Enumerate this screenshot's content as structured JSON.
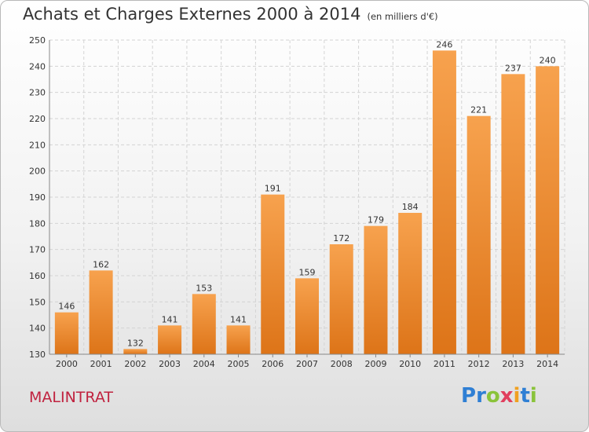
{
  "header": {
    "title": "Achats et Charges Externes 2000 à 2014",
    "subtitle": "(en milliers d'€)"
  },
  "location": "MALINTRAT",
  "brand": {
    "name": "Proxiti",
    "letters": [
      {
        "ch": "P",
        "color": "#2f7fd4"
      },
      {
        "ch": "r",
        "color": "#2f7fd4"
      },
      {
        "ch": "o",
        "color": "#8ac33a"
      },
      {
        "ch": "x",
        "color": "#e13f5e"
      },
      {
        "ch": "i",
        "color": "#f0a020"
      },
      {
        "ch": "t",
        "color": "#2f7fd4"
      },
      {
        "ch": "i",
        "color": "#8ac33a"
      }
    ]
  },
  "colors": {
    "bar_top": "#f7a24e",
    "bar_bottom": "#dd7418",
    "grid": "#d4d4d4",
    "axis": "#888888",
    "text": "#333333"
  },
  "chart_data": {
    "type": "bar",
    "categories": [
      "2000",
      "2001",
      "2002",
      "2003",
      "2004",
      "2005",
      "2006",
      "2007",
      "2008",
      "2009",
      "2010",
      "2011",
      "2012",
      "2013",
      "2014"
    ],
    "values": [
      146,
      162,
      132,
      141,
      153,
      141,
      191,
      159,
      172,
      179,
      184,
      246,
      221,
      237,
      240
    ],
    "ylim": [
      130,
      250
    ],
    "yticks": [
      130,
      140,
      150,
      160,
      170,
      180,
      190,
      200,
      210,
      220,
      230,
      240,
      250
    ],
    "grid": true
  }
}
